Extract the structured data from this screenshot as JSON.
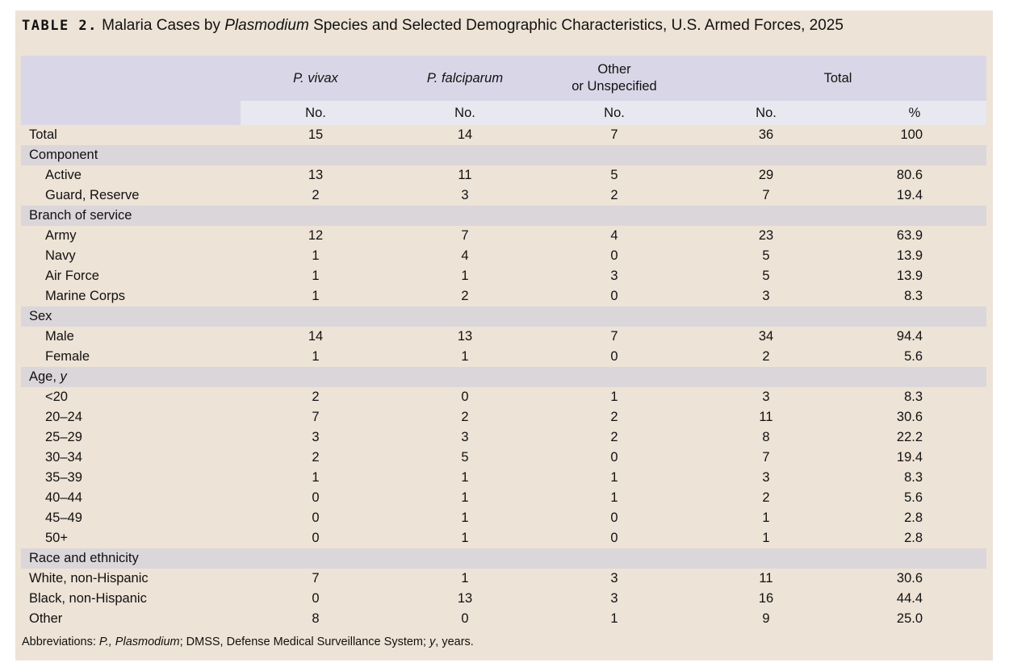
{
  "title": {
    "label": "TABLE 2.",
    "pre": "Malaria Cases by",
    "italic": "Plasmodium",
    "post": "Species and Selected Demographic Characteristics, U.S. Armed Forces, 2025"
  },
  "header": {
    "vivax": "P. vivax",
    "falciparum": "P. falciparum",
    "other_line1": "Other",
    "other_line2": "or Unspecified",
    "total": "Total",
    "no": "No.",
    "pct": "%"
  },
  "rows": [
    {
      "type": "data",
      "label": "Total",
      "indent": false,
      "vivax": "15",
      "falciparum": "14",
      "other": "7",
      "total": "36",
      "pct": "100"
    },
    {
      "type": "section",
      "label": "Component"
    },
    {
      "type": "data",
      "label": "Active",
      "indent": true,
      "vivax": "13",
      "falciparum": "11",
      "other": "5",
      "total": "29",
      "pct": "80.6"
    },
    {
      "type": "data",
      "label": "Guard, Reserve",
      "indent": true,
      "vivax": "2",
      "falciparum": "3",
      "other": "2",
      "total": "7",
      "pct": "19.4"
    },
    {
      "type": "section",
      "label": "Branch of service"
    },
    {
      "type": "data",
      "label": "Army",
      "indent": true,
      "vivax": "12",
      "falciparum": "7",
      "other": "4",
      "total": "23",
      "pct": "63.9"
    },
    {
      "type": "data",
      "label": "Navy",
      "indent": true,
      "vivax": "1",
      "falciparum": "4",
      "other": "0",
      "total": "5",
      "pct": "13.9"
    },
    {
      "type": "data",
      "label": "Air Force",
      "indent": true,
      "vivax": "1",
      "falciparum": "1",
      "other": "3",
      "total": "5",
      "pct": "13.9"
    },
    {
      "type": "data",
      "label": "Marine Corps",
      "indent": true,
      "vivax": "1",
      "falciparum": "2",
      "other": "0",
      "total": "3",
      "pct": "8.3"
    },
    {
      "type": "section",
      "label": "Sex"
    },
    {
      "type": "data",
      "label": "Male",
      "indent": true,
      "vivax": "14",
      "falciparum": "13",
      "other": "7",
      "total": "34",
      "pct": "94.4"
    },
    {
      "type": "data",
      "label": "Female",
      "indent": true,
      "vivax": "1",
      "falciparum": "1",
      "other": "0",
      "total": "2",
      "pct": "5.6"
    },
    {
      "type": "section",
      "label": "Age, ",
      "label_italic": "y"
    },
    {
      "type": "data",
      "label": "<20",
      "indent": true,
      "vivax": "2",
      "falciparum": "0",
      "other": "1",
      "total": "3",
      "pct": "8.3"
    },
    {
      "type": "data",
      "label": "20–24",
      "indent": true,
      "vivax": "7",
      "falciparum": "2",
      "other": "2",
      "total": "11",
      "pct": "30.6"
    },
    {
      "type": "data",
      "label": "25–29",
      "indent": true,
      "vivax": "3",
      "falciparum": "3",
      "other": "2",
      "total": "8",
      "pct": "22.2"
    },
    {
      "type": "data",
      "label": "30–34",
      "indent": true,
      "vivax": "2",
      "falciparum": "5",
      "other": "0",
      "total": "7",
      "pct": "19.4"
    },
    {
      "type": "data",
      "label": "35–39",
      "indent": true,
      "vivax": "1",
      "falciparum": "1",
      "other": "1",
      "total": "3",
      "pct": "8.3"
    },
    {
      "type": "data",
      "label": "40–44",
      "indent": true,
      "vivax": "0",
      "falciparum": "1",
      "other": "1",
      "total": "2",
      "pct": "5.6"
    },
    {
      "type": "data",
      "label": "45–49",
      "indent": true,
      "vivax": "0",
      "falciparum": "1",
      "other": "0",
      "total": "1",
      "pct": "2.8"
    },
    {
      "type": "data",
      "label": "50+",
      "indent": true,
      "vivax": "0",
      "falciparum": "1",
      "other": "0",
      "total": "1",
      "pct": "2.8"
    },
    {
      "type": "section",
      "label": "Race and ethnicity"
    },
    {
      "type": "data",
      "label": "White, non-Hispanic",
      "indent": false,
      "vivax": "7",
      "falciparum": "1",
      "other": "3",
      "total": "11",
      "pct": "30.6"
    },
    {
      "type": "data",
      "label": "Black, non-Hispanic",
      "indent": false,
      "vivax": "0",
      "falciparum": "13",
      "other": "3",
      "total": "16",
      "pct": "44.4"
    },
    {
      "type": "data",
      "label": "Other",
      "indent": false,
      "vivax": "8",
      "falciparum": "0",
      "other": "1",
      "total": "9",
      "pct": "25.0"
    }
  ],
  "footnote": {
    "pre": "Abbreviations: ",
    "abbr_italic": "P., Plasmodium",
    "mid": "; DMSS, Defense Medical Surveillance System; ",
    "y_italic": "y",
    "post": ", years."
  },
  "colors": {
    "panel_bg": "#ede3d6",
    "header_bg": "#d9d7e7",
    "subheader_bg": "#e8e8f0",
    "section_bg": "#dbd6da"
  }
}
